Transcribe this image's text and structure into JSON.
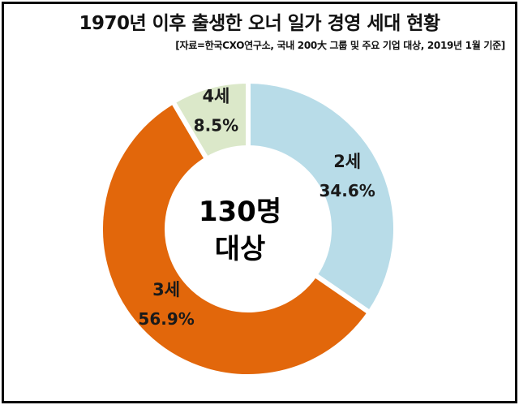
{
  "title": "1970년 이후 출생한 오너 일가 경영 세대 현황",
  "subtitle": "[자료=한국CXO연구소, 국내 200大 그룹 및 주요 기업 대상, 2019년 1월 기준]",
  "center_label": {
    "line1": "130명",
    "line2": "대상"
  },
  "chart_data": {
    "type": "pie",
    "title": "1970년 이후 출생한 오너 일가 경영 세대 현황",
    "subtitle": "[자료=한국CXO연구소, 국내 200大 그룹 및 주요 기업 대상, 2019년 1월 기준]",
    "donut": true,
    "center_text": [
      "130명",
      "대상"
    ],
    "slices": [
      {
        "label": "2세",
        "value": 34.6,
        "value_label": "34.6%",
        "color": "#b8dce8"
      },
      {
        "label": "3세",
        "value": 56.9,
        "value_label": "56.9%",
        "color": "#e2670b"
      },
      {
        "label": "4세",
        "value": 8.5,
        "value_label": "8.5%",
        "color": "#dbe8c9"
      }
    ]
  }
}
